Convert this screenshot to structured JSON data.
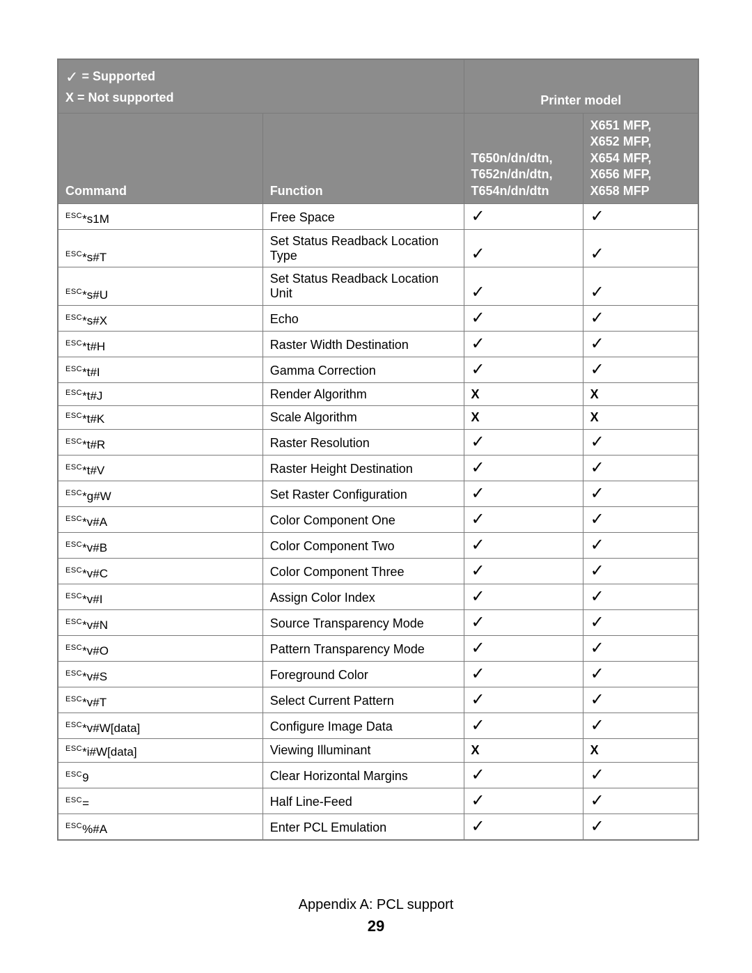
{
  "legend": {
    "supported": "= Supported",
    "not_supported": "X = Not supported",
    "printer_model": "Printer model"
  },
  "headers": {
    "command": "Command",
    "function": "Function",
    "model1_lines": [
      "T650n/dn/dtn,",
      "T652n/dn/dtn,",
      "T654n/dn/dtn"
    ],
    "model2_lines": [
      "X651 MFP,",
      "X652 MFP,",
      "X654 MFP,",
      "X656 MFP,",
      "X658 MFP"
    ]
  },
  "rows": [
    {
      "esc": "ESC",
      "cmd": "*s1M",
      "fn": "Free Space",
      "m1": "✓",
      "m2": "✓"
    },
    {
      "esc": "ESC",
      "cmd": "*s#T",
      "fn": "Set Status Readback Location Type",
      "m1": "✓",
      "m2": "✓"
    },
    {
      "esc": "ESC",
      "cmd": "*s#U",
      "fn": "Set Status Readback Location Unit",
      "m1": "✓",
      "m2": "✓"
    },
    {
      "esc": "ESC",
      "cmd": "*s#X",
      "fn": "Echo",
      "m1": "✓",
      "m2": "✓"
    },
    {
      "esc": "ESC",
      "cmd": "*t#H",
      "fn": "Raster Width Destination",
      "m1": "✓",
      "m2": "✓"
    },
    {
      "esc": "ESC",
      "cmd": "*t#I",
      "fn": "Gamma Correction",
      "m1": "✓",
      "m2": "✓"
    },
    {
      "esc": "ESC",
      "cmd": "*t#J",
      "fn": "Render Algorithm",
      "m1": "X",
      "m2": "X"
    },
    {
      "esc": "ESC",
      "cmd": "*t#K",
      "fn": "Scale Algorithm",
      "m1": "X",
      "m2": "X"
    },
    {
      "esc": "ESC",
      "cmd": "*t#R",
      "fn": "Raster Resolution",
      "m1": "✓",
      "m2": "✓"
    },
    {
      "esc": "ESC",
      "cmd": "*t#V",
      "fn": "Raster Height Destination",
      "m1": "✓",
      "m2": "✓"
    },
    {
      "esc": "ESC",
      "cmd": "*g#W",
      "fn": "Set Raster Configuration",
      "m1": "✓",
      "m2": "✓"
    },
    {
      "esc": "ESC",
      "cmd": "*v#A",
      "fn": "Color Component One",
      "m1": "✓",
      "m2": "✓"
    },
    {
      "esc": "ESC",
      "cmd": "*v#B",
      "fn": "Color Component Two",
      "m1": "✓",
      "m2": "✓"
    },
    {
      "esc": "ESC",
      "cmd": "*v#C",
      "fn": "Color Component Three",
      "m1": "✓",
      "m2": "✓"
    },
    {
      "esc": "ESC",
      "cmd": "*v#I",
      "fn": "Assign Color Index",
      "m1": "✓",
      "m2": "✓"
    },
    {
      "esc": "ESC",
      "cmd": "*v#N",
      "fn": "Source Transparency Mode",
      "m1": "✓",
      "m2": "✓"
    },
    {
      "esc": "ESC",
      "cmd": "*v#O",
      "fn": "Pattern Transparency Mode",
      "m1": "✓",
      "m2": "✓"
    },
    {
      "esc": "ESC",
      "cmd": "*v#S",
      "fn": "Foreground Color",
      "m1": "✓",
      "m2": "✓"
    },
    {
      "esc": "ESC",
      "cmd": "*v#T",
      "fn": "Select Current Pattern",
      "m1": "✓",
      "m2": "✓"
    },
    {
      "esc": "ESC",
      "cmd": "*v#W[data]",
      "fn": "Configure Image Data",
      "m1": "✓",
      "m2": "✓"
    },
    {
      "esc": "ESC",
      "cmd": "*i#W[data]",
      "fn": "Viewing Illuminant",
      "m1": "X",
      "m2": "X"
    },
    {
      "esc": "ESC",
      "cmd": "9",
      "fn": "Clear Horizontal Margins",
      "m1": "✓",
      "m2": "✓"
    },
    {
      "esc": "ESC",
      "cmd": "=",
      "fn": "Half Line-Feed",
      "m1": "✓",
      "m2": "✓"
    },
    {
      "esc": "ESC",
      "cmd": "%#A",
      "fn": "Enter PCL Emulation",
      "m1": "✓",
      "m2": "✓"
    }
  ],
  "footer": {
    "title": "Appendix A: PCL support",
    "page": "29"
  },
  "style": {
    "header_bg": "#8c8c8c",
    "header_fg": "#ffffff",
    "border_color": "#7a7a7a",
    "body_fg": "#000000",
    "check_glyph": "✓",
    "x_glyph": "X",
    "col_widths_pct": [
      27.5,
      27,
      16,
      15.5
    ]
  }
}
